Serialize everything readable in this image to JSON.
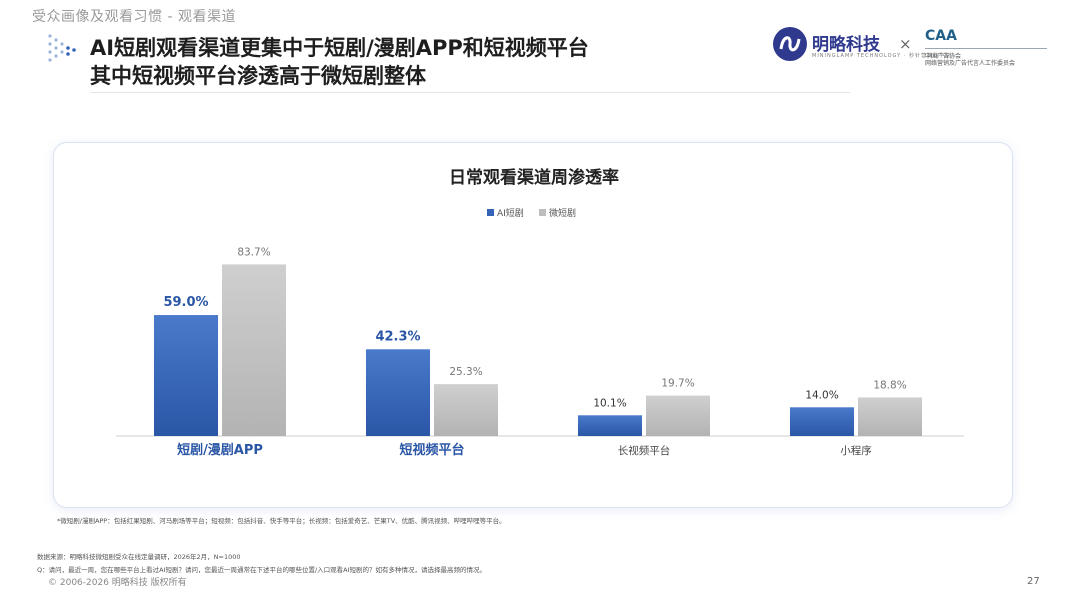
{
  "breadcrumb": "受众画像及观看习惯 - 观看渠道",
  "title": {
    "line1": "AI短剧观看渠道更集中于短剧/漫剧APP和短视频平台",
    "line2": "其中短视频平台渗透高于微短剧整体"
  },
  "logos": {
    "brand_name": "明略科技",
    "brand_sub": "MININGLAMP TECHNOLOGY · 秒针营销科学院",
    "times": "×",
    "caa": "CAA",
    "caa_line1": "中国广告协会",
    "caa_line2": "网络营销及广告代言人工作委员会"
  },
  "chart_data": {
    "type": "bar",
    "title": "日常观看渠道周渗透率",
    "categories": [
      "短剧/漫剧APP",
      "短视频平台",
      "长视频平台",
      "小程序"
    ],
    "series": [
      {
        "name": "AI短剧",
        "values": [
          59.0,
          42.3,
          10.1,
          14.0
        ],
        "labels": [
          "59.0%",
          "42.3%",
          "10.1%",
          "14.0%"
        ],
        "color": "#3564b7"
      },
      {
        "name": "微短剧",
        "values": [
          83.7,
          25.3,
          19.7,
          18.8
        ],
        "labels": [
          "83.7%",
          "25.3%",
          "19.7%",
          "18.8%"
        ],
        "color": "#bdbdbd"
      }
    ],
    "emphasized_categories": [
      "短剧/漫剧APP",
      "短视频平台"
    ],
    "ylim": [
      0,
      100
    ],
    "legend": "top-center",
    "grid": false
  },
  "footnote": "*微短剧/漫剧APP：包括红果短剧、河马剧场等平台；短视频：包括抖音、快手等平台；长视频：包括爱奇艺、芒果TV、优酷、腾讯视频、哔哩哔哩等平台。",
  "source": "数据来源：明略科技微短剧受众在线定量调研，2026年2月，N=1000",
  "question": "Q：请问，最近一周，您在哪些平台上看过AI短剧？请问，您最近一周通常在下述平台的哪些位置/入口观看AI短剧的？如有多种情况，请选择最高频的情况。",
  "copyright": "© 2006-2026 明略科技 版权所有",
  "page_number": "27",
  "colors": {
    "accent": "#3564b7",
    "secondary": "#bdbdbd",
    "brand": "#2f3a8f"
  }
}
